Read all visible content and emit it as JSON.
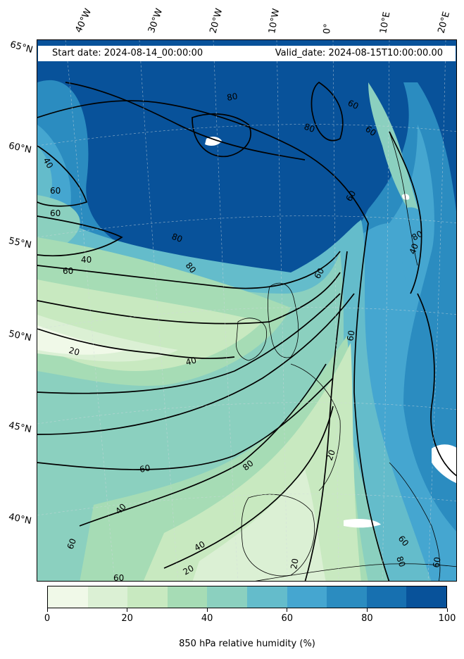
{
  "map": {
    "start_date": "Start date: 2024-08-14_00:00:00",
    "valid_date": "Valid_date: 2024-08-15T10:00:00.00",
    "longitude_labels": [
      "40°W",
      "30°W",
      "20°W",
      "10°W",
      "0°",
      "10°E",
      "20°E"
    ],
    "latitude_labels": [
      "65°N",
      "60°N",
      "55°N",
      "50°N",
      "45°N",
      "40°N"
    ],
    "contour_labels": [
      "80",
      "60",
      "80",
      "60",
      "60",
      "40",
      "60",
      "60",
      "80",
      "80",
      "40",
      "60",
      "20",
      "40",
      "60",
      "80",
      "40",
      "60",
      "40",
      "20",
      "60",
      "80",
      "60",
      "40",
      "60",
      "20",
      "20",
      "80",
      "60",
      "60"
    ]
  },
  "colorbar": {
    "label": "850 hPa relative humidity (%)",
    "ticks": [
      "0",
      "20",
      "40",
      "60",
      "80",
      "100"
    ],
    "tick_values": [
      0,
      20,
      40,
      60,
      80,
      100
    ],
    "range": [
      0,
      100
    ],
    "levels": [
      0,
      10,
      20,
      30,
      40,
      50,
      60,
      70,
      80,
      90,
      100
    ],
    "colors": [
      "#f0f9e8",
      "#dbf0d4",
      "#c8e9c0",
      "#a6dcb5",
      "#8bd0bf",
      "#64bccb",
      "#45a6d0",
      "#2b8cc0",
      "#1770b0",
      "#08529a"
    ]
  }
}
